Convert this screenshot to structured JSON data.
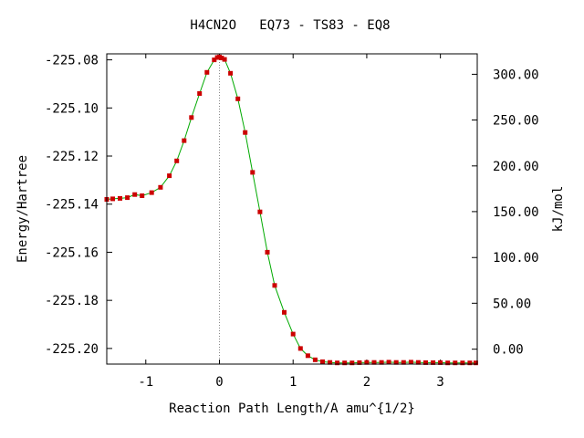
{
  "chart_data": {
    "type": "line",
    "title": "H4CN2O   EQ73 - TS83 - EQ8",
    "xlabel": "Reaction Path Length/A amu^{1/2}",
    "ylabel": "Energy/Hartree",
    "y2label": "kJ/mol",
    "xlim": [
      -1.53,
      3.5
    ],
    "ylim": [
      -225.2065,
      -225.0775
    ],
    "x_ticks": [
      {
        "value": -1,
        "label": "-1"
      },
      {
        "value": 0,
        "label": "0"
      },
      {
        "value": 1,
        "label": "1"
      },
      {
        "value": 2,
        "label": "2"
      },
      {
        "value": 3,
        "label": "3"
      }
    ],
    "y_ticks": [
      {
        "value": -225.08,
        "label": "-225.08"
      },
      {
        "value": -225.1,
        "label": "-225.10"
      },
      {
        "value": -225.12,
        "label": "-225.12"
      },
      {
        "value": -225.14,
        "label": "-225.14"
      },
      {
        "value": -225.16,
        "label": "-225.16"
      },
      {
        "value": -225.18,
        "label": "-225.18"
      },
      {
        "value": -225.2,
        "label": "-225.20"
      }
    ],
    "y2_ticks": [
      {
        "value": -225.086,
        "label": "300.00"
      },
      {
        "value": -225.105,
        "label": "250.00"
      },
      {
        "value": -225.1241,
        "label": "200.00"
      },
      {
        "value": -225.1431,
        "label": "150.00"
      },
      {
        "value": -225.1622,
        "label": "100.00"
      },
      {
        "value": -225.1812,
        "label": "50.00"
      },
      {
        "value": -225.2003,
        "label": "0.00"
      }
    ],
    "ts_line_x": 0,
    "colors": {
      "line": "#00aa00",
      "marker": "#cc0000",
      "ts_line": "#888888"
    },
    "series": [
      {
        "x": [
          -1.53,
          -1.45,
          -1.35,
          -1.25,
          -1.15,
          -1.05,
          -0.92,
          -0.8,
          -0.68,
          -0.58,
          -0.48,
          -0.38,
          -0.27,
          -0.17,
          -0.07,
          -0.03,
          0.0,
          0.03,
          0.07,
          0.15,
          0.25,
          0.35,
          0.45,
          0.55,
          0.65,
          0.75,
          0.88,
          1.0,
          1.1,
          1.2,
          1.3,
          1.4,
          1.5,
          1.6,
          1.7,
          1.8,
          1.9,
          2.0,
          2.1,
          2.2,
          2.3,
          2.4,
          2.5,
          2.6,
          2.7,
          2.8,
          2.9,
          3.0,
          3.1,
          3.2,
          3.3,
          3.4,
          3.48
        ],
        "y": [
          -225.138,
          -225.1378,
          -225.1376,
          -225.1373,
          -225.136,
          -225.1365,
          -225.1352,
          -225.133,
          -225.1282,
          -225.122,
          -225.1136,
          -225.104,
          -225.094,
          -225.0852,
          -225.08,
          -225.079,
          -225.0788,
          -225.0792,
          -225.0798,
          -225.0856,
          -225.0962,
          -225.1102,
          -225.1268,
          -225.1432,
          -225.16,
          -225.1738,
          -225.185,
          -225.194,
          -225.2,
          -225.203,
          -225.2047,
          -225.2055,
          -225.2058,
          -225.206,
          -225.206,
          -225.206,
          -225.2059,
          -225.2058,
          -225.2058,
          -225.2058,
          -225.2057,
          -225.2058,
          -225.2058,
          -225.2057,
          -225.2058,
          -225.2059,
          -225.2059,
          -225.2059,
          -225.206,
          -225.206,
          -225.206,
          -225.206,
          -225.206
        ]
      }
    ]
  }
}
